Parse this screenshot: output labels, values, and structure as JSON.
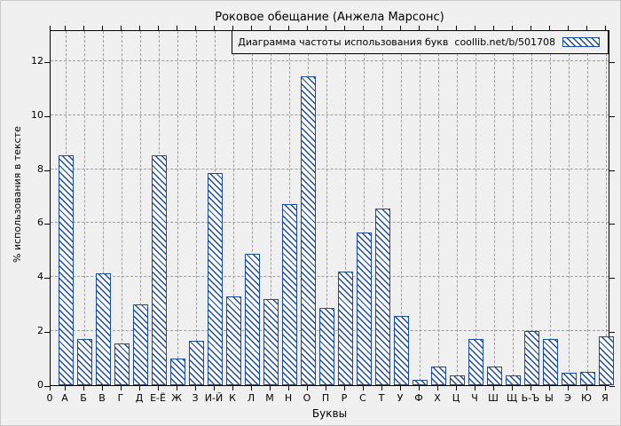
{
  "colors": {
    "bar": "#1b4aa2",
    "bar_fill": "#fcfcfc",
    "grid": "#9c9c9c",
    "frame": "#000000",
    "background": "#f0f0f0"
  },
  "chart_data": {
    "type": "bar",
    "title": "Роковое обещание (Анжела Марсонс)",
    "legend_label": "Диаграмма частоты использования букв  coollib.net/b/501708",
    "legend_position": "top-right-inside",
    "xlabel": "Буквы",
    "ylabel": "% использования в тексте",
    "origin_label": "0",
    "ylim": [
      0,
      13.2
    ],
    "grid": true,
    "hatch": "diagonal-backslash",
    "y_ticks": [
      0,
      2,
      4,
      6,
      8,
      10,
      12
    ],
    "categories": [
      "А",
      "Б",
      "В",
      "Г",
      "Д",
      "Е-Ё",
      "Ж",
      "З",
      "И-Й",
      "К",
      "Л",
      "М",
      "Н",
      "О",
      "П",
      "Р",
      "С",
      "Т",
      "У",
      "Ф",
      "Х",
      "Ц",
      "Ч",
      "Ш",
      "Щ",
      "Ь-Ъ",
      "Ы",
      "Э",
      "Ю",
      "Я"
    ],
    "values": [
      8.5,
      1.7,
      4.15,
      1.55,
      3.0,
      8.5,
      1.0,
      1.65,
      7.85,
      3.3,
      4.85,
      3.2,
      6.7,
      11.45,
      2.85,
      4.2,
      5.65,
      6.55,
      2.55,
      0.2,
      0.7,
      0.35,
      1.7,
      0.7,
      0.35,
      2.0,
      1.7,
      0.45,
      0.5,
      1.8
    ]
  }
}
